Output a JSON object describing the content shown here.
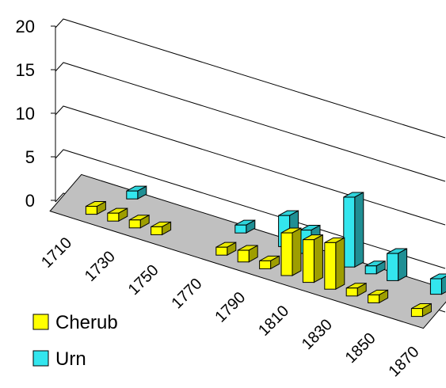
{
  "chart_data": {
    "type": "bar",
    "title": "",
    "xlabel": "",
    "ylabel": "",
    "ylim": [
      0,
      20
    ],
    "y_ticks": [
      "0",
      "5",
      "10",
      "15",
      "20"
    ],
    "x_tick_labels": [
      "1710",
      "1730",
      "1750",
      "1770",
      "1790",
      "1810",
      "1830",
      "1850",
      "1870"
    ],
    "categories": [
      "1710",
      "1720",
      "1730",
      "1740",
      "1750",
      "1760",
      "1770",
      "1780",
      "1790",
      "1800",
      "1810",
      "1820",
      "1830",
      "1840",
      "1850",
      "1860",
      "1870"
    ],
    "series": [
      {
        "name": "Cherub",
        "color": "#ffff00",
        "values": [
          0,
          1,
          2,
          2,
          1,
          0,
          0,
          1,
          3,
          2,
          11,
          11,
          12,
          1,
          1,
          0,
          1
        ]
      },
      {
        "name": "Urn",
        "color": "#33e6ee",
        "values": [
          0,
          0,
          1,
          0,
          0,
          0,
          0,
          2,
          0,
          8,
          6,
          0,
          18,
          2,
          7,
          0,
          4
        ]
      }
    ],
    "grid": true,
    "view": "3d",
    "legend_position": "bottom-left"
  }
}
